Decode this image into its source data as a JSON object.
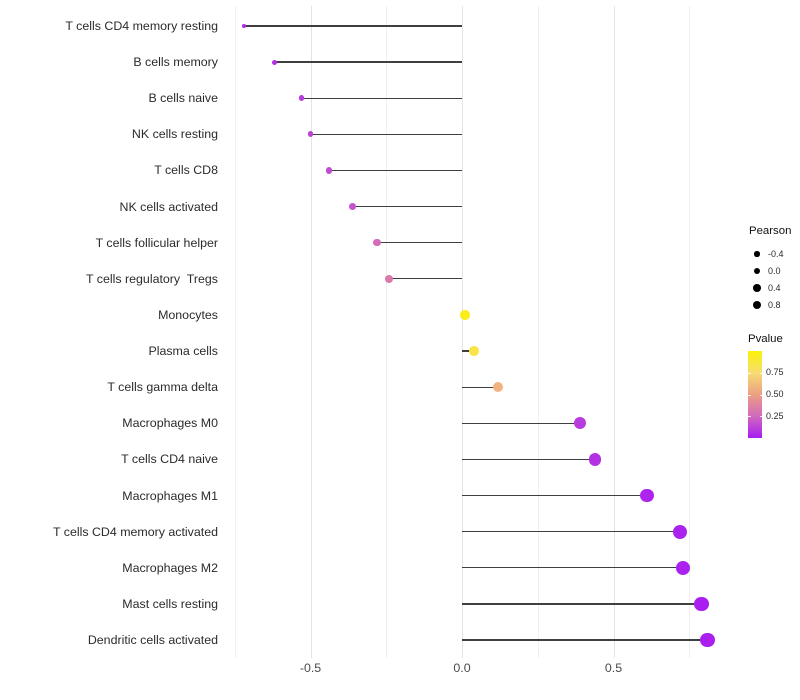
{
  "chart_data": {
    "type": "scatter",
    "variant": "lollipop",
    "orientation": "horizontal",
    "title": "",
    "xlabel": "",
    "ylabel": "",
    "grid": "vertical-only",
    "categories": [
      "T cells CD4 memory resting",
      "B cells memory",
      "B cells naive",
      "NK cells resting",
      "T cells CD8",
      "NK cells activated",
      "T cells follicular helper",
      "T cells regulatory  Tregs",
      "Monocytes",
      "Plasma cells",
      "T cells gamma delta",
      "Macrophages M0",
      "T cells CD4 naive",
      "Macrophages M1",
      "T cells CD4 memory activated",
      "Macrophages M2",
      "Mast cells resting",
      "Dendritic cells activated"
    ],
    "series": [
      {
        "name": "Pearson",
        "values": [
          -0.72,
          -0.62,
          -0.53,
          -0.5,
          -0.44,
          -0.36,
          -0.28,
          -0.24,
          0.01,
          0.04,
          0.12,
          0.39,
          0.44,
          0.61,
          0.72,
          0.73,
          0.79,
          0.81
        ]
      },
      {
        "name": "Pvalue",
        "values": [
          0.05,
          0.06,
          0.1,
          0.12,
          0.15,
          0.18,
          0.27,
          0.33,
          0.95,
          0.85,
          0.58,
          0.1,
          0.07,
          0.03,
          0.02,
          0.02,
          0.01,
          0.01
        ]
      }
    ],
    "baseline": 0,
    "x_axis": {
      "tick_labels": [
        "-0.5",
        "0.0",
        "0.5"
      ],
      "tick_values": [
        -0.5,
        0.0,
        0.5
      ],
      "minor_tick_values": [
        -0.75,
        -0.25,
        0.25,
        0.75
      ],
      "range": [
        -0.78,
        0.9
      ]
    },
    "legend": {
      "size": {
        "title": "Pearson",
        "dot_color": "#000000",
        "entries": [
          {
            "label": "-0.4",
            "diameter": 5.2
          },
          {
            "label": "0.0",
            "diameter": 6.4
          },
          {
            "label": "0.4",
            "diameter": 7.7
          },
          {
            "label": "0.8",
            "diameter": 8.8
          }
        ]
      },
      "color": {
        "title": "Pvalue",
        "tick_labels": [
          "0.75",
          "0.50",
          "0.25"
        ],
        "tick_values": [
          0.75,
          0.5,
          0.25
        ],
        "range": [
          0,
          1
        ],
        "gradient_stops": [
          {
            "p": 0.0,
            "color": "#A81CF2"
          },
          {
            "p": 0.25,
            "color": "#D169BE"
          },
          {
            "p": 0.5,
            "color": "#EC9F83"
          },
          {
            "p": 0.75,
            "color": "#F7DC72"
          },
          {
            "p": 1.0,
            "color": "#FAF307"
          }
        ]
      }
    },
    "style": {
      "background": "#FFFFFF",
      "stem_color": "#3F3F3F",
      "grid_major_color": "#E4E4E4",
      "grid_minor_color": "#F0F0F0",
      "axis_text_color": "#2B2B2B"
    }
  }
}
